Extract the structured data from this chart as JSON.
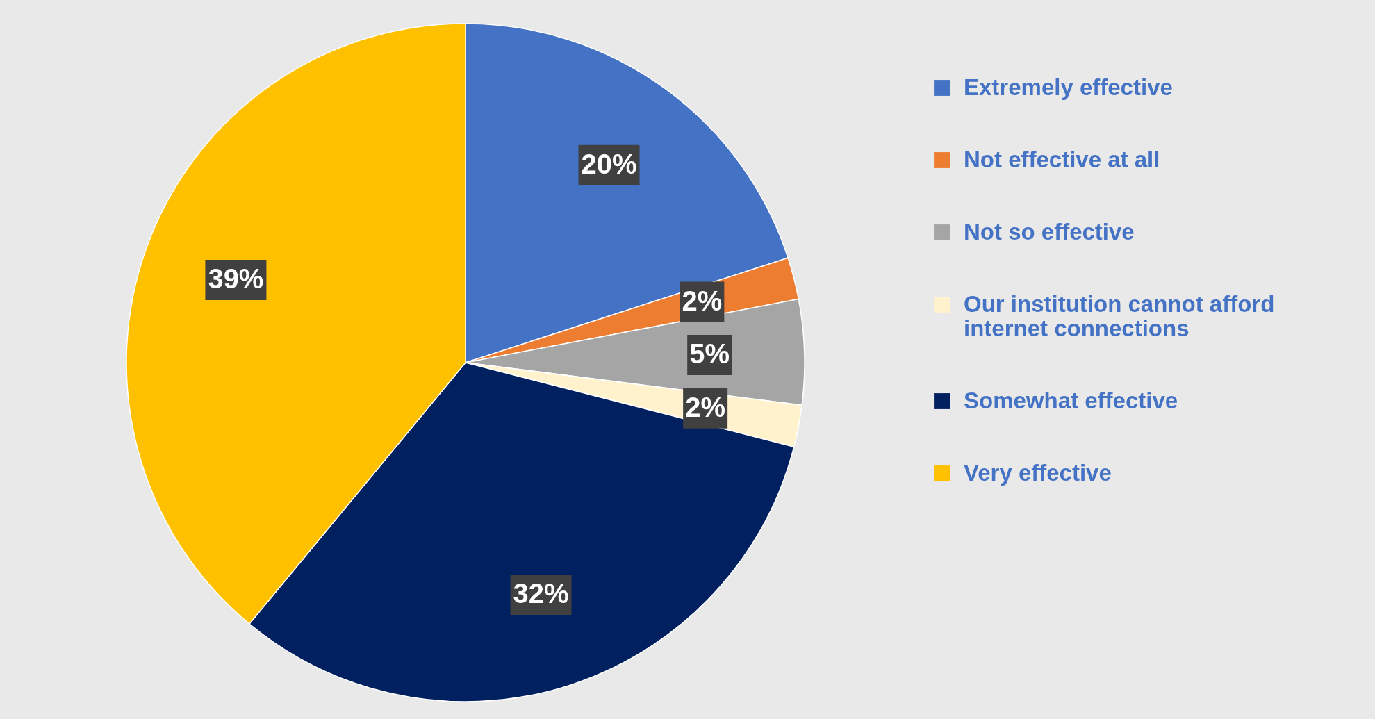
{
  "chart_data": {
    "type": "pie",
    "categories": [
      "Extremely effective",
      "Not effective at all",
      "Not so effective",
      "Our institution cannot afford internet connections",
      "Somewhat effective",
      "Very effective"
    ],
    "values": [
      20,
      2,
      5,
      2,
      32,
      39
    ],
    "colors": [
      "#4472c4",
      "#ed7d31",
      "#a5a5a5",
      "#fff2cc",
      "#002060",
      "#ffc000"
    ],
    "value_labels": [
      "20%",
      "2%",
      "5%",
      "2%",
      "32%",
      "39%"
    ],
    "legend": "right"
  }
}
